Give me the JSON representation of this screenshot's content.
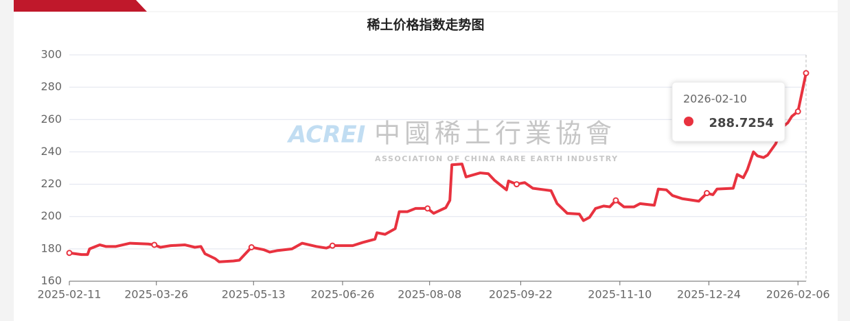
{
  "chart_data": {
    "type": "line",
    "title": "稀土价格指数走势图",
    "watermark": {
      "logo": "ACREI",
      "name": "中國稀土行業協會",
      "subtitle": "ASSOCIATION OF CHINA RARE EARTH INDUSTRY"
    },
    "x": [
      "2025-02-11",
      "2025-02-17",
      "2025-02-20",
      "2025-02-21",
      "2025-02-23",
      "2025-02-26",
      "2025-03-01",
      "2025-03-06",
      "2025-03-13",
      "2025-03-22",
      "2025-03-25",
      "2025-03-28",
      "2025-04-02",
      "2025-04-09",
      "2025-04-14",
      "2025-04-17",
      "2025-04-19",
      "2025-04-24",
      "2025-04-26",
      "2025-05-03",
      "2025-05-06",
      "2025-05-09",
      "2025-05-12",
      "2025-05-18",
      "2025-05-21",
      "2025-05-25",
      "2025-06-01",
      "2025-06-06",
      "2025-06-13",
      "2025-06-18",
      "2025-06-21",
      "2025-07-01",
      "2025-07-06",
      "2025-07-12",
      "2025-07-13",
      "2025-07-17",
      "2025-07-22",
      "2025-07-24",
      "2025-07-28",
      "2025-08-01",
      "2025-08-07",
      "2025-08-10",
      "2025-08-16",
      "2025-08-18",
      "2025-08-19",
      "2025-08-24",
      "2025-08-26",
      "2025-09-02",
      "2025-09-06",
      "2025-09-09",
      "2025-09-15",
      "2025-09-16",
      "2025-09-20",
      "2025-09-24",
      "2025-09-28",
      "2025-10-04",
      "2025-10-07",
      "2025-10-10",
      "2025-10-15",
      "2025-10-21",
      "2025-10-23",
      "2025-10-26",
      "2025-10-29",
      "2025-11-02",
      "2025-11-05",
      "2025-11-08",
      "2025-11-12",
      "2025-11-17",
      "2025-11-20",
      "2025-11-27",
      "2025-11-29",
      "2025-12-03",
      "2025-12-06",
      "2025-12-11",
      "2025-12-19",
      "2025-12-23",
      "2025-12-26",
      "2025-12-28",
      "2026-01-05",
      "2026-01-07",
      "2026-01-10",
      "2026-01-12",
      "2026-01-15",
      "2026-01-17",
      "2026-01-20",
      "2026-01-22",
      "2026-01-26",
      "2026-01-29",
      "2026-02-01",
      "2026-02-03",
      "2026-02-06",
      "2026-02-10"
    ],
    "series": [
      {
        "name": "稀土价格指数",
        "color": "#e8323f",
        "values": [
          177.5,
          176.5,
          176.5,
          180,
          181,
          182.5,
          181.5,
          181.5,
          183.5,
          183,
          182.5,
          181,
          182,
          182.5,
          181,
          181.5,
          177,
          174,
          172,
          172.5,
          173,
          177,
          181,
          179.5,
          178,
          179,
          180,
          183.5,
          181.5,
          180.5,
          182,
          182,
          184,
          186,
          190,
          189,
          192.5,
          203,
          203,
          205,
          205,
          202,
          205.5,
          210,
          232,
          232.5,
          224.5,
          227,
          226.5,
          222.5,
          216.5,
          222,
          220,
          221,
          217.5,
          216.5,
          216,
          208,
          202,
          201.5,
          197.5,
          199.5,
          205,
          206.5,
          206,
          210,
          206,
          206,
          208,
          207,
          217,
          216.5,
          213,
          211,
          209.5,
          214.5,
          213.5,
          217,
          217.5,
          226,
          224,
          229,
          240,
          237.5,
          236.5,
          238,
          245,
          255,
          258,
          262,
          265,
          288.7254
        ]
      }
    ],
    "xlim": [
      "2025-02-11",
      "2026-02-10"
    ],
    "xticks": [
      "2025-02-11",
      "2025-03-26",
      "2025-05-13",
      "2025-06-26",
      "2025-08-08",
      "2025-09-22",
      "2025-11-10",
      "2025-12-24",
      "2026-02-06"
    ],
    "ylim": [
      160,
      300
    ],
    "yticks": [
      160,
      180,
      200,
      220,
      240,
      260,
      280,
      300
    ],
    "grid": true
  }
}
